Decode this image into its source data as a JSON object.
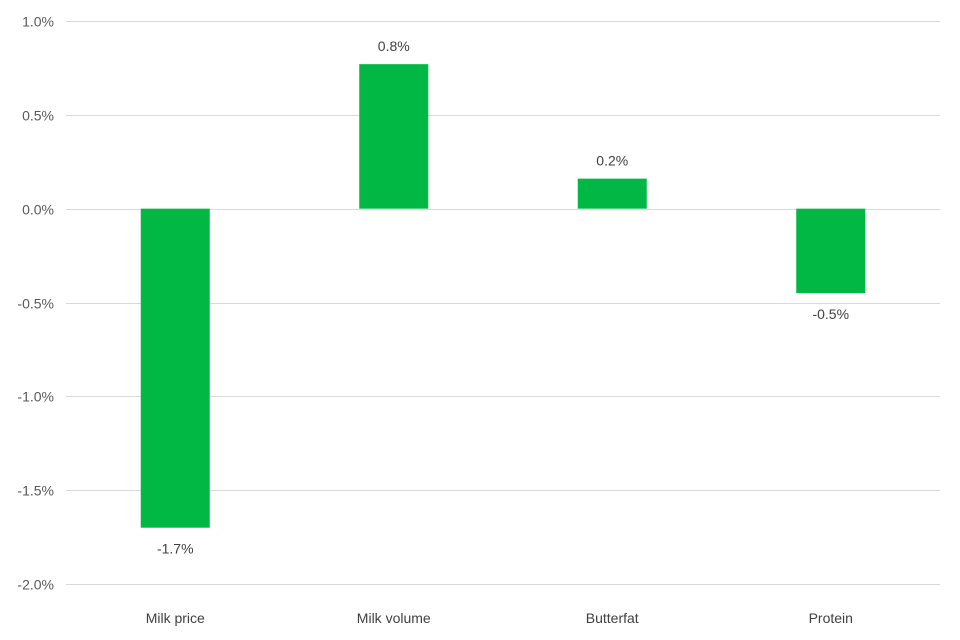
{
  "chart_data": {
    "type": "bar",
    "categories": [
      "Milk price",
      "Milk volume",
      "Butterfat",
      "Protein"
    ],
    "values": [
      -1.7,
      0.77,
      0.16,
      -0.45
    ],
    "data_labels": [
      "-1.7%",
      "0.8%",
      "0.2%",
      "-0.5%"
    ],
    "yticks": [
      1.0,
      0.5,
      0.0,
      -0.5,
      -1.0,
      -1.5,
      -2.0
    ],
    "ytick_labels": [
      "1.0%",
      "0.5%",
      "0.0%",
      "-0.5%",
      "-1.0%",
      "-1.5%",
      "-2.0%"
    ],
    "ylim": [
      -2.0,
      1.0
    ],
    "grid": true,
    "legend": "none",
    "title": "",
    "xlabel": "",
    "ylabel": "",
    "bar_color": "#00b843",
    "grid_color": "#d9d9d9"
  }
}
